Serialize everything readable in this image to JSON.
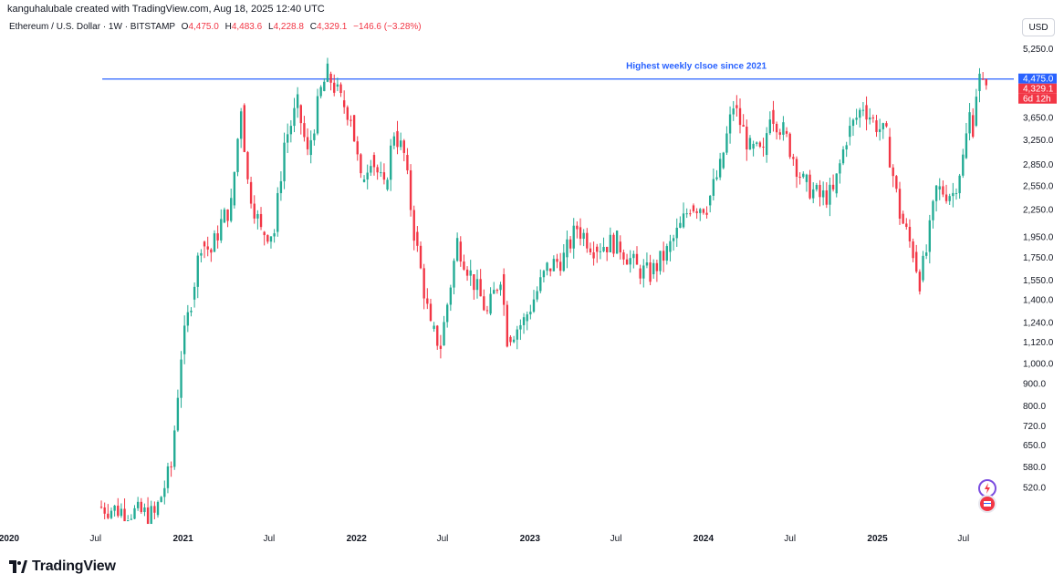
{
  "header": {
    "attribution": "kanguhalubale created with TradingView.com, Aug 18, 2025 12:40 UTC",
    "symbol": "Ethereum / U.S. Dollar · 1W · BITSTAMP",
    "o_key": "O",
    "o_val": "4,475.0",
    "h_key": "H",
    "h_val": "4,483.6",
    "l_key": "L",
    "l_val": "4,228.8",
    "c_key": "C",
    "c_val": "4,329.1",
    "change": "−146.6 (−3.28%)"
  },
  "price_scale": {
    "currency": "USD"
  },
  "logo": {
    "text": "TradingView"
  },
  "colors": {
    "up": "#22ab94",
    "down": "#f23645",
    "line": "#2962ff",
    "annotation": "#2962ff",
    "grid_text": "#131722"
  },
  "chart_data": {
    "type": "candlestick",
    "symbol": "ETH/USD",
    "interval": "1W",
    "exchange": "BITSTAMP",
    "y_scale": "log",
    "ylim": [
      440,
      5600
    ],
    "grid": false,
    "x_axis": {
      "start": "2020-01-01",
      "end": "2025-10-15",
      "ticks": [
        {
          "label": "2020",
          "date": "2020-01-01",
          "bold": true
        },
        {
          "label": "Jul",
          "date": "2020-07-01",
          "bold": false
        },
        {
          "label": "2021",
          "date": "2021-01-01",
          "bold": true
        },
        {
          "label": "Jul",
          "date": "2021-07-01",
          "bold": false
        },
        {
          "label": "2022",
          "date": "2022-01-01",
          "bold": true
        },
        {
          "label": "Jul",
          "date": "2022-07-01",
          "bold": false
        },
        {
          "label": "2023",
          "date": "2023-01-01",
          "bold": true
        },
        {
          "label": "Jul",
          "date": "2023-07-01",
          "bold": false
        },
        {
          "label": "2024",
          "date": "2024-01-01",
          "bold": true
        },
        {
          "label": "Jul",
          "date": "2024-07-01",
          "bold": false
        },
        {
          "label": "2025",
          "date": "2025-01-01",
          "bold": true
        },
        {
          "label": "Jul",
          "date": "2025-07-01",
          "bold": false
        }
      ]
    },
    "y_ticks": [
      {
        "label": "5,250.0",
        "value": 5250
      },
      {
        "label": "3,650.0",
        "value": 3650
      },
      {
        "label": "3,250.0",
        "value": 3250
      },
      {
        "label": "2,850.0",
        "value": 2850
      },
      {
        "label": "2,550.0",
        "value": 2550
      },
      {
        "label": "2,250.0",
        "value": 2250
      },
      {
        "label": "1,950.0",
        "value": 1950
      },
      {
        "label": "1,750.0",
        "value": 1750
      },
      {
        "label": "1,550.0",
        "value": 1550
      },
      {
        "label": "1,400.0",
        "value": 1400
      },
      {
        "label": "1,240.0",
        "value": 1240
      },
      {
        "label": "1,120.0",
        "value": 1120
      },
      {
        "label": "1,000.0",
        "value": 1000
      },
      {
        "label": "900.0",
        "value": 900
      },
      {
        "label": "800.0",
        "value": 800
      },
      {
        "label": "720.0",
        "value": 720
      },
      {
        "label": "650.0",
        "value": 650
      },
      {
        "label": "580.0",
        "value": 580
      },
      {
        "label": "520.0",
        "value": 520
      }
    ],
    "price_tags": [
      {
        "label": "4,475.0",
        "value": 4475,
        "color": "#2962ff"
      },
      {
        "label": "4,329.1",
        "value": 4329.1,
        "color": "#f23645"
      },
      {
        "label": "6d 12h",
        "value": 4329.1,
        "color": "#f23645",
        "sub": true
      }
    ],
    "horizontal_line": {
      "value": 4475,
      "from": "2020-07-15",
      "to": "2025-08-18"
    },
    "annotation": {
      "text": "Highest weekly clsoe since 2021",
      "value": 4475
    },
    "series_anchor_points": [
      {
        "date": "2020-07-13",
        "close": 470
      },
      {
        "date": "2020-11-09",
        "close": 450
      },
      {
        "date": "2020-12-14",
        "close": 580
      },
      {
        "date": "2021-01-04",
        "close": 1050
      },
      {
        "date": "2021-01-25",
        "close": 1400
      },
      {
        "date": "2021-02-15",
        "close": 1900
      },
      {
        "date": "2021-03-08",
        "close": 1800
      },
      {
        "date": "2021-03-29",
        "close": 2100
      },
      {
        "date": "2021-04-19",
        "close": 2300
      },
      {
        "date": "2021-05-10",
        "close": 3900
      },
      {
        "date": "2021-05-24",
        "close": 2600
      },
      {
        "date": "2021-06-21",
        "close": 2000
      },
      {
        "date": "2021-07-19",
        "close": 2000
      },
      {
        "date": "2021-08-09",
        "close": 3200
      },
      {
        "date": "2021-09-06",
        "close": 3900
      },
      {
        "date": "2021-09-27",
        "close": 3000
      },
      {
        "date": "2021-10-25",
        "close": 4200
      },
      {
        "date": "2021-11-08",
        "close": 4600
      },
      {
        "date": "2021-11-22",
        "close": 4300
      },
      {
        "date": "2021-12-06",
        "close": 4000
      },
      {
        "date": "2021-12-27",
        "close": 3700
      },
      {
        "date": "2022-01-17",
        "close": 2600
      },
      {
        "date": "2022-02-07",
        "close": 3000
      },
      {
        "date": "2022-03-07",
        "close": 2500
      },
      {
        "date": "2022-03-28",
        "close": 3400
      },
      {
        "date": "2022-04-18",
        "close": 3000
      },
      {
        "date": "2022-05-09",
        "close": 2000
      },
      {
        "date": "2022-06-13",
        "close": 1200
      },
      {
        "date": "2022-07-04",
        "close": 1100
      },
      {
        "date": "2022-08-08",
        "close": 1900
      },
      {
        "date": "2022-09-05",
        "close": 1600
      },
      {
        "date": "2022-10-10",
        "close": 1300
      },
      {
        "date": "2022-11-07",
        "close": 1600
      },
      {
        "date": "2022-11-21",
        "close": 1150
      },
      {
        "date": "2022-12-26",
        "close": 1250
      },
      {
        "date": "2023-02-13",
        "close": 1650
      },
      {
        "date": "2023-03-20",
        "close": 1750
      },
      {
        "date": "2023-04-17",
        "close": 2050
      },
      {
        "date": "2023-05-22",
        "close": 1850
      },
      {
        "date": "2023-07-10",
        "close": 1900
      },
      {
        "date": "2023-08-21",
        "close": 1650
      },
      {
        "date": "2023-09-18",
        "close": 1600
      },
      {
        "date": "2023-10-23",
        "close": 1800
      },
      {
        "date": "2023-11-20",
        "close": 2050
      },
      {
        "date": "2023-12-11",
        "close": 2300
      },
      {
        "date": "2024-01-15",
        "close": 2300
      },
      {
        "date": "2024-02-12",
        "close": 2800
      },
      {
        "date": "2024-03-11",
        "close": 3900
      },
      {
        "date": "2024-04-15",
        "close": 3100
      },
      {
        "date": "2024-05-13",
        "close": 3000
      },
      {
        "date": "2024-05-27",
        "close": 3800
      },
      {
        "date": "2024-06-24",
        "close": 3400
      },
      {
        "date": "2024-08-05",
        "close": 2600
      },
      {
        "date": "2024-09-09",
        "close": 2400
      },
      {
        "date": "2024-10-07",
        "close": 2450
      },
      {
        "date": "2024-11-04",
        "close": 3300
      },
      {
        "date": "2024-12-09",
        "close": 3900
      },
      {
        "date": "2024-12-30",
        "close": 3600
      },
      {
        "date": "2025-01-27",
        "close": 3300
      },
      {
        "date": "2025-02-24",
        "close": 2200
      },
      {
        "date": "2025-03-24",
        "close": 1800
      },
      {
        "date": "2025-04-07",
        "close": 1550
      },
      {
        "date": "2025-04-21",
        "close": 1800
      },
      {
        "date": "2025-05-12",
        "close": 2500
      },
      {
        "date": "2025-06-16",
        "close": 2450
      },
      {
        "date": "2025-07-07",
        "close": 2950
      },
      {
        "date": "2025-07-21",
        "close": 3700
      },
      {
        "date": "2025-07-28",
        "close": 3500
      },
      {
        "date": "2025-08-04",
        "close": 4200
      },
      {
        "date": "2025-08-11",
        "close": 4475
      },
      {
        "date": "2025-08-18",
        "close": 4329.1
      }
    ],
    "last_candle": {
      "date": "2025-08-18",
      "open": 4475.0,
      "high": 4483.6,
      "low": 4228.8,
      "close": 4329.1
    }
  }
}
